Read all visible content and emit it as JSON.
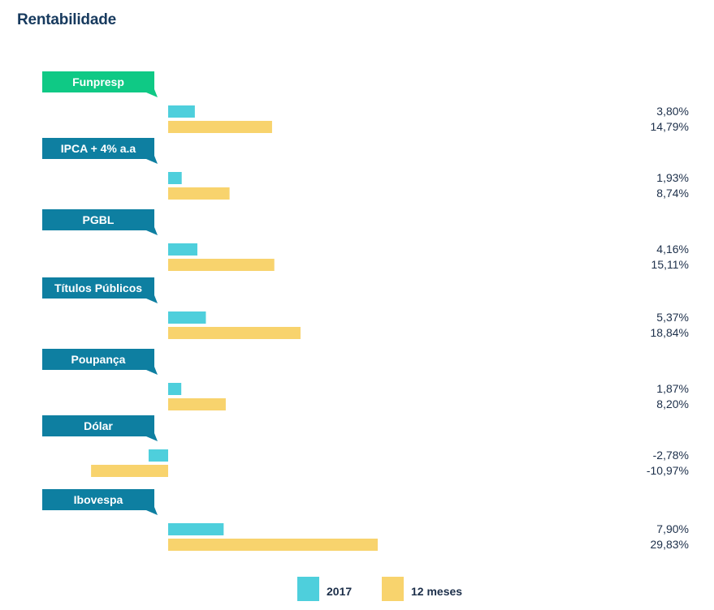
{
  "header": {
    "title": "Rentabilidade"
  },
  "colors": {
    "series_2017": "#4ecfdc",
    "series_12m": "#f8d36d",
    "tag_default": "#0e7fa1",
    "tag_highlight": "#0fc985",
    "value_text": "#1c2f4a"
  },
  "chart_data": {
    "type": "bar",
    "orientation": "horizontal",
    "title": "Rentabilidade",
    "categories": [
      "Funpresp",
      "IPCA + 4% a.a",
      "PGBL",
      "Títulos Públicos",
      "Poupança",
      "Dólar",
      "Ibovespa"
    ],
    "highlight_category": "Funpresp",
    "series": [
      {
        "name": "2017",
        "values": [
          3.8,
          1.93,
          4.16,
          5.37,
          1.87,
          -2.78,
          7.9
        ],
        "labels": [
          "3,80%",
          "1,93%",
          "4,16%",
          "5,37%",
          "1,87%",
          "-2,78%",
          "7,90%"
        ]
      },
      {
        "name": "12 meses",
        "values": [
          14.79,
          8.74,
          15.11,
          18.84,
          8.2,
          -10.97,
          29.83
        ],
        "labels": [
          "14,79%",
          "8,74%",
          "15,11%",
          "18,84%",
          "8,20%",
          "-10,97%",
          "29,83%"
        ]
      }
    ],
    "legend_position": "bottom-center",
    "grid": false,
    "unit": "%"
  }
}
